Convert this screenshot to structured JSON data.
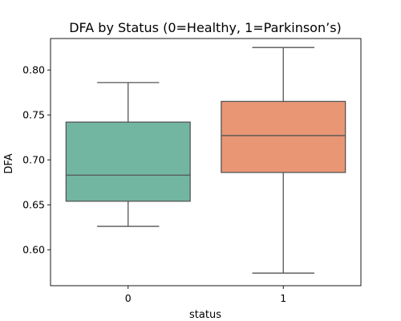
{
  "chart_data": {
    "type": "box",
    "title": "DFA by Status (0=Healthy, 1=Parkinson’s)",
    "xlabel": "status",
    "ylabel": "DFA",
    "categories": [
      "0",
      "1"
    ],
    "ylim": [
      0.56,
      0.835
    ],
    "yticks": [
      0.6,
      0.65,
      0.7,
      0.75,
      0.8
    ],
    "ytick_labels": [
      "0.60",
      "0.65",
      "0.70",
      "0.75",
      "0.80"
    ],
    "grid": false,
    "boxes": [
      {
        "category": "0",
        "whisker_low": 0.626,
        "q1": 0.654,
        "median": 0.683,
        "q3": 0.742,
        "whisker_high": 0.786,
        "color": "#72b6a1"
      },
      {
        "category": "1",
        "whisker_low": 0.574,
        "q1": 0.686,
        "median": 0.727,
        "q3": 0.765,
        "whisker_high": 0.825,
        "color": "#e99675"
      }
    ],
    "line_color": "#555555"
  }
}
